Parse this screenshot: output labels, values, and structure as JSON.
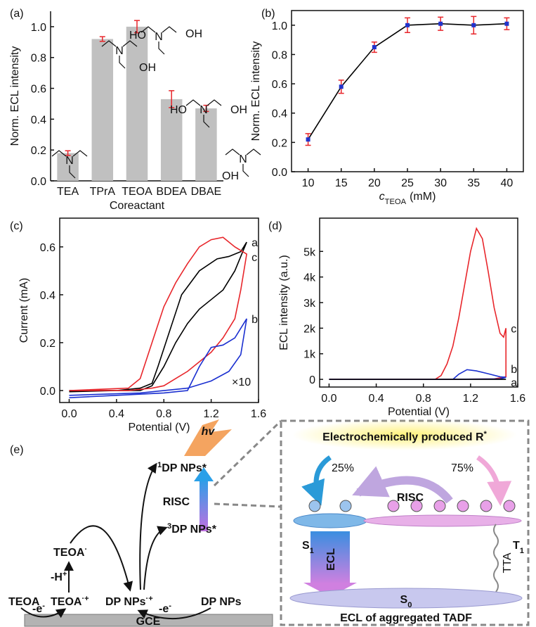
{
  "chart_data": [
    {
      "type": "bar",
      "label": "(a)",
      "y_label": "Norm. ECL intensity",
      "x_label": "Coreactant",
      "categories": [
        "TEA",
        "TPrA",
        "TEOA",
        "BDEA",
        "DBAE"
      ],
      "values": [
        0.18,
        0.92,
        1.0,
        0.53,
        0.47
      ],
      "errors": [
        0.015,
        0.015,
        0.04,
        0.055,
        0.02
      ],
      "color": "#c0c0c0",
      "error_color": "#e8262b",
      "ylim": [
        0,
        1.1
      ],
      "yticks": [
        {
          "value": 0,
          "label": "0.0"
        },
        0.2,
        0.4,
        0.6,
        0.8,
        {
          "value": 1,
          "label": "1.0"
        }
      ]
    },
    {
      "type": "line",
      "label": "(b)",
      "y_label": "Norm. ECL intensity",
      "x_label": {
        "symbol": "c",
        "subscript": "TEOA",
        "unit": "(mM)"
      },
      "x": [
        10,
        15,
        20,
        25,
        30,
        35,
        40
      ],
      "series": [
        {
          "color": "#000000",
          "marker_color": "#2233cc",
          "error_color": "#e8262b",
          "values": [
            0.22,
            0.58,
            0.85,
            1.0,
            1.01,
            1.0,
            1.01
          ],
          "errors": [
            0.04,
            0.045,
            0.035,
            0.05,
            0.045,
            0.06,
            0.04
          ]
        }
      ],
      "xlim": [
        7.5,
        42.5
      ],
      "xticks": [
        10,
        15,
        20,
        25,
        30,
        35,
        40
      ],
      "ylim": [
        0,
        1.1
      ],
      "yticks": [
        {
          "value": 0,
          "label": "0.0"
        },
        0.2,
        0.4,
        0.6,
        0.8,
        {
          "value": 1,
          "label": "1.0"
        }
      ]
    },
    {
      "type": "line",
      "label": "(c)",
      "y_label": "Current (mA)",
      "x_label": "Potential (V)",
      "series": [
        {
          "name": "a",
          "color": "#000000",
          "x": [
            0,
            0.6,
            0.7,
            0.8,
            0.9,
            1.0,
            1.1,
            1.2,
            1.3,
            1.4,
            1.5,
            1.45,
            1.35,
            1.25,
            1.1,
            0.95,
            0.85,
            0.75,
            0.7,
            0.6,
            0.4,
            0
          ],
          "values": [
            0,
            0,
            0.02,
            0.1,
            0.2,
            0.28,
            0.34,
            0.38,
            0.42,
            0.5,
            0.62,
            0.58,
            0.56,
            0.55,
            0.5,
            0.4,
            0.25,
            0.1,
            0.03,
            0.01,
            0,
            -0.005
          ]
        },
        {
          "name": "c",
          "color": "#e8262b",
          "x": [
            0,
            0.5,
            0.6,
            0.7,
            0.8,
            0.9,
            1.0,
            1.1,
            1.2,
            1.3,
            1.4,
            1.5,
            1.45,
            1.4,
            1.3,
            1.2,
            1.1,
            1.0,
            0.9,
            0.8,
            0.7,
            0.5,
            0
          ],
          "values": [
            0,
            0.01,
            0.05,
            0.2,
            0.35,
            0.45,
            0.53,
            0.6,
            0.63,
            0.64,
            0.6,
            0.57,
            0.42,
            0.3,
            0.22,
            0.16,
            0.12,
            0.08,
            0.05,
            0.02,
            0.01,
            0,
            0
          ]
        },
        {
          "name": "b",
          "color": "#1a2fd0",
          "x": [
            0,
            0.4,
            0.8,
            1.0,
            1.1,
            1.2,
            1.3,
            1.4,
            1.5,
            1.45,
            1.35,
            1.2,
            1.0,
            0.6,
            0
          ],
          "values": [
            -0.03,
            -0.02,
            -0.01,
            0,
            0.1,
            0.18,
            0.19,
            0.22,
            0.3,
            0.15,
            0.08,
            0.04,
            0.01,
            -0.01,
            -0.02
          ]
        }
      ],
      "annotations": [
        "×10"
      ],
      "xlim": [
        -0.08,
        1.6
      ],
      "xticks": [
        {
          "value": 0,
          "label": "0.0"
        },
        0.4,
        0.8,
        1.2,
        1.6
      ],
      "ylim": [
        -0.05,
        0.72
      ],
      "yticks": [
        {
          "value": 0,
          "label": "0.0"
        },
        0.2,
        0.4,
        0.6
      ]
    },
    {
      "type": "line",
      "label": "(d)",
      "y_label": "ECL intensity (a.u.)",
      "x_label": "Potential (V)",
      "series": [
        {
          "name": "c",
          "color": "#e8262b",
          "x": [
            0,
            0.9,
            0.95,
            1.0,
            1.05,
            1.1,
            1.15,
            1.2,
            1.25,
            1.3,
            1.35,
            1.4,
            1.45,
            1.48,
            1.5,
            1.5,
            1.4,
            1.0,
            0
          ],
          "values": [
            0,
            0,
            150,
            600,
            1300,
            2400,
            3700,
            5000,
            5900,
            5500,
            4200,
            2800,
            1800,
            1650,
            2000,
            100,
            20,
            0,
            0
          ]
        },
        {
          "name": "b",
          "color": "#1a2fd0",
          "x": [
            0,
            1.05,
            1.1,
            1.17,
            1.25,
            1.35,
            1.45,
            1.5,
            1.45,
            1.0,
            0
          ],
          "values": [
            0,
            0,
            200,
            380,
            330,
            220,
            100,
            80,
            20,
            0,
            0
          ]
        },
        {
          "name": "a",
          "color": "#000000",
          "x": [
            0,
            1.5
          ],
          "values": [
            0,
            0
          ]
        }
      ],
      "xlim": [
        -0.08,
        1.6
      ],
      "xticks": [
        {
          "value": 0,
          "label": "0.0"
        },
        0.4,
        0.8,
        1.2,
        1.6
      ],
      "ylim": [
        -300,
        6300
      ],
      "yticks": [
        0,
        {
          "value": 1000,
          "label": "1k"
        },
        {
          "value": 2000,
          "label": "2k"
        },
        {
          "value": 3000,
          "label": "3k"
        },
        {
          "value": 4000,
          "label": "4k"
        },
        {
          "value": 5000,
          "label": "5k"
        }
      ]
    }
  ],
  "structures": [
    [
      "N"
    ],
    [
      "N"
    ],
    [
      "HO",
      "N",
      "OH",
      "OH"
    ],
    [
      "HO",
      "N",
      "OH"
    ],
    [
      "N",
      "OH"
    ]
  ],
  "diagram": {
    "label": "(e)",
    "hv": "hv",
    "singlet": {
      "sup": "1",
      "text": "DP NPs*"
    },
    "risc_left": "RISC",
    "triplet": {
      "sup": "3",
      "text": "DP NPs*"
    },
    "teoa_radical": {
      "text": "TEOA",
      "sup": "·"
    },
    "deprotonation": {
      "text": "-H",
      "sup": "+"
    },
    "teoa": "TEOA",
    "teoa_cation": {
      "text": "TEOA",
      "sup": "·+"
    },
    "dp_cation": {
      "text": "DP NPs",
      "sup": "·+"
    },
    "dp": "DP NPs",
    "oxidation_1": {
      "text": "-e",
      "sup": "-"
    },
    "oxidation_2": {
      "text": "-e",
      "sup": "-"
    },
    "electrode": "GCE",
    "box_title": {
      "text": "Electrochemically produced R",
      "sup": "*"
    },
    "ratio_singlet": "25%",
    "ratio_triplet": "75%",
    "risc_right": "RISC",
    "s1": {
      "text": "S",
      "sub": "1"
    },
    "t1": {
      "text": "T",
      "sub": "1"
    },
    "ecl": "ECL",
    "tta": "TTA",
    "s0": {
      "text": "S",
      "sub": "0"
    },
    "box_caption": "ECL of aggregated TADF"
  }
}
